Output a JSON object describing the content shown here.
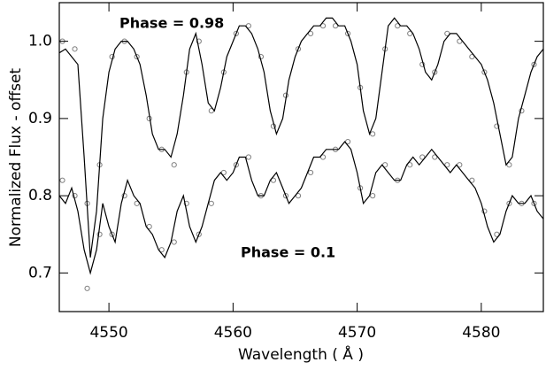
{
  "chart_data": {
    "type": "spectrum",
    "annotations": [
      "Phase = 0.98",
      "Phase = 0.1"
    ],
    "x_label": "Wavelength ( Å )",
    "y_label": "Normalized Flux - offset",
    "xlim": [
      4546,
      4585
    ],
    "ylim": [
      0.65,
      1.05
    ],
    "xticks": [
      4550,
      4560,
      4570,
      4580
    ],
    "yticks": [
      0.7,
      0.8,
      0.9,
      {
        "value": 1,
        "label": "1.0"
      }
    ],
    "series": [
      {
        "style": "line",
        "color": "#000000",
        "x": [
          4546,
          4546.5,
          4547,
          4547.5,
          4548,
          4548.5,
          4549,
          4549.5,
          4550,
          4550.5,
          4551,
          4551.5,
          4552,
          4552.5,
          4553,
          4553.5,
          4554,
          4554.5,
          4555,
          4555.5,
          4556,
          4556.5,
          4557,
          4557.5,
          4558,
          4558.5,
          4559,
          4559.5,
          4560,
          4560.5,
          4561,
          4561.5,
          4562,
          4562.5,
          4563,
          4563.5,
          4564,
          4564.5,
          4565,
          4565.5,
          4566,
          4566.5,
          4567,
          4567.5,
          4568,
          4568.5,
          4569,
          4569.5,
          4570,
          4570.5,
          4571,
          4571.5,
          4572,
          4572.5,
          4573,
          4573.5,
          4574,
          4574.5,
          4575,
          4575.5,
          4576,
          4576.5,
          4577,
          4577.5,
          4578,
          4578.5,
          4579,
          4579.5,
          4580,
          4580.5,
          4581,
          4581.5,
          4582,
          4582.5,
          4583,
          4583.5,
          4584,
          4584.5,
          4585
        ],
        "values": [
          0.985,
          0.99,
          0.98,
          0.97,
          0.85,
          0.72,
          0.78,
          0.9,
          0.96,
          0.99,
          1.0,
          1.0,
          0.99,
          0.97,
          0.93,
          0.88,
          0.86,
          0.86,
          0.85,
          0.88,
          0.93,
          0.99,
          1.01,
          0.97,
          0.92,
          0.91,
          0.94,
          0.98,
          1.0,
          1.02,
          1.02,
          1.01,
          0.99,
          0.96,
          0.91,
          0.88,
          0.9,
          0.95,
          0.98,
          1.0,
          1.01,
          1.02,
          1.02,
          1.03,
          1.03,
          1.02,
          1.02,
          1.0,
          0.97,
          0.91,
          0.88,
          0.9,
          0.96,
          1.02,
          1.03,
          1.02,
          1.02,
          1.01,
          0.99,
          0.96,
          0.95,
          0.97,
          1.0,
          1.01,
          1.01,
          1.0,
          0.99,
          0.98,
          0.97,
          0.95,
          0.92,
          0.88,
          0.84,
          0.85,
          0.9,
          0.93,
          0.96,
          0.98,
          0.99
        ]
      },
      {
        "style": "line",
        "color": "#000000",
        "x": [
          4546,
          4546.5,
          4547,
          4547.5,
          4548,
          4548.5,
          4549,
          4549.5,
          4550,
          4550.5,
          4551,
          4551.5,
          4552,
          4552.5,
          4553,
          4553.5,
          4554,
          4554.5,
          4555,
          4555.5,
          4556,
          4556.5,
          4557,
          4557.5,
          4558,
          4558.5,
          4559,
          4559.5,
          4560,
          4560.5,
          4561,
          4561.5,
          4562,
          4562.5,
          4563,
          4563.5,
          4564,
          4564.5,
          4565,
          4565.5,
          4566,
          4566.5,
          4567,
          4567.5,
          4568,
          4568.5,
          4569,
          4569.5,
          4570,
          4570.5,
          4571,
          4571.5,
          4572,
          4572.5,
          4573,
          4573.5,
          4574,
          4574.5,
          4575,
          4575.5,
          4576,
          4576.5,
          4577,
          4577.5,
          4578,
          4578.5,
          4579,
          4579.5,
          4580,
          4580.5,
          4581,
          4581.5,
          4582,
          4582.5,
          4583,
          4583.5,
          4584,
          4584.5,
          4585
        ],
        "values": [
          0.8,
          0.79,
          0.81,
          0.78,
          0.73,
          0.7,
          0.73,
          0.79,
          0.76,
          0.74,
          0.79,
          0.82,
          0.8,
          0.79,
          0.76,
          0.75,
          0.73,
          0.72,
          0.74,
          0.78,
          0.8,
          0.76,
          0.74,
          0.76,
          0.79,
          0.82,
          0.83,
          0.82,
          0.83,
          0.85,
          0.85,
          0.82,
          0.8,
          0.8,
          0.82,
          0.83,
          0.81,
          0.79,
          0.8,
          0.81,
          0.83,
          0.85,
          0.85,
          0.86,
          0.86,
          0.86,
          0.87,
          0.86,
          0.83,
          0.79,
          0.8,
          0.83,
          0.84,
          0.83,
          0.82,
          0.82,
          0.84,
          0.85,
          0.84,
          0.85,
          0.86,
          0.85,
          0.84,
          0.83,
          0.84,
          0.83,
          0.82,
          0.81,
          0.79,
          0.76,
          0.74,
          0.75,
          0.78,
          0.8,
          0.79,
          0.79,
          0.8,
          0.78,
          0.77
        ]
      },
      {
        "style": "markers",
        "color": "#808080",
        "x": [
          4546.25,
          4547.25,
          4548.25,
          4549.25,
          4550.25,
          4551.25,
          4552.25,
          4553.25,
          4554.25,
          4555.25,
          4556.25,
          4557.25,
          4558.25,
          4559.25,
          4560.25,
          4561.25,
          4562.25,
          4563.25,
          4564.25,
          4565.25,
          4566.25,
          4567.25,
          4568.25,
          4569.25,
          4570.25,
          4571.25,
          4572.25,
          4573.25,
          4574.25,
          4575.25,
          4576.25,
          4577.25,
          4578.25,
          4579.25,
          4580.25,
          4581.25,
          4582.25,
          4583.25,
          4584.25
        ],
        "values": [
          1.0,
          0.99,
          0.79,
          0.84,
          0.98,
          1.0,
          0.98,
          0.9,
          0.86,
          0.84,
          0.96,
          1.0,
          0.91,
          0.96,
          1.01,
          1.02,
          0.98,
          0.89,
          0.93,
          0.99,
          1.01,
          1.02,
          1.02,
          1.01,
          0.94,
          0.88,
          0.99,
          1.02,
          1.01,
          0.97,
          0.96,
          1.01,
          1.0,
          0.98,
          0.96,
          0.89,
          0.84,
          0.91,
          0.97
        ]
      },
      {
        "style": "markers",
        "color": "#808080",
        "x": [
          4546.25,
          4547.25,
          4548.25,
          4549.25,
          4550.25,
          4551.25,
          4552.25,
          4553.25,
          4554.25,
          4555.25,
          4556.25,
          4557.25,
          4558.25,
          4559.25,
          4560.25,
          4561.25,
          4562.25,
          4563.25,
          4564.25,
          4565.25,
          4566.25,
          4567.25,
          4568.25,
          4569.25,
          4570.25,
          4571.25,
          4572.25,
          4573.25,
          4574.25,
          4575.25,
          4576.25,
          4577.25,
          4578.25,
          4579.25,
          4580.25,
          4581.25,
          4582.25,
          4583.25,
          4584.25
        ],
        "values": [
          0.82,
          0.8,
          0.68,
          0.75,
          0.75,
          0.8,
          0.79,
          0.76,
          0.73,
          0.74,
          0.79,
          0.75,
          0.79,
          0.83,
          0.84,
          0.85,
          0.8,
          0.82,
          0.8,
          0.8,
          0.83,
          0.85,
          0.86,
          0.87,
          0.81,
          0.8,
          0.84,
          0.82,
          0.84,
          0.85,
          0.85,
          0.84,
          0.84,
          0.82,
          0.78,
          0.75,
          0.79,
          0.79,
          0.79
        ]
      }
    ]
  }
}
